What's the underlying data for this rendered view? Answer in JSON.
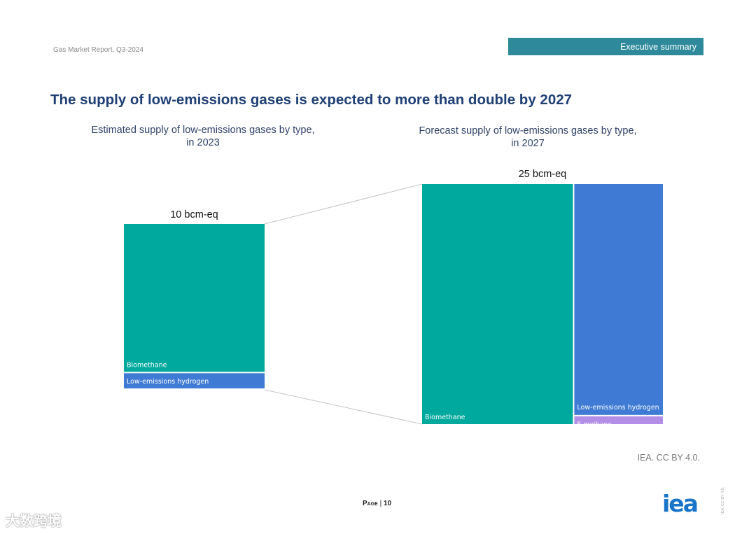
{
  "header": {
    "report_name": "Gas Market Report, Q3-2024",
    "section": "Executive summary",
    "section_color": "#2e8a9b"
  },
  "title": "The supply of low-emissions gases is expected to more than double by 2027",
  "chart_data": [
    {
      "type": "treemap",
      "title_lines": [
        "Estimated supply of low-emissions gases by type,",
        "in 2023"
      ],
      "total_label": "10 bcm-eq",
      "total": 10,
      "unit": "bcm-eq",
      "segments": [
        {
          "name": "Biomethane",
          "value": 9,
          "color": "#00a99d"
        },
        {
          "name": "Low-emissions hydrogen",
          "value": 1,
          "color": "#3f7bd4"
        }
      ]
    },
    {
      "type": "treemap",
      "title_lines": [
        "Forecast supply of low-emissions gases by type,",
        "in 2027"
      ],
      "total_label": "25 bcm-eq",
      "total": 25,
      "unit": "bcm-eq",
      "segments": [
        {
          "name": "Biomethane",
          "value": 15.8,
          "color": "#00a99d"
        },
        {
          "name": "Low-emissions hydrogen",
          "value": 8.9,
          "color": "#3f7bd4"
        },
        {
          "name": "E-methane",
          "value": 0.3,
          "color": "#b38ee6"
        }
      ]
    }
  ],
  "source": "IEA. CC BY 4.0.",
  "footer": {
    "page_word": "Page",
    "page_separator": " | ",
    "page_number": "10",
    "logo_text": "iea",
    "license_vertical": "IEA. CC BY 4.0.",
    "watermark": "大数跨境"
  }
}
